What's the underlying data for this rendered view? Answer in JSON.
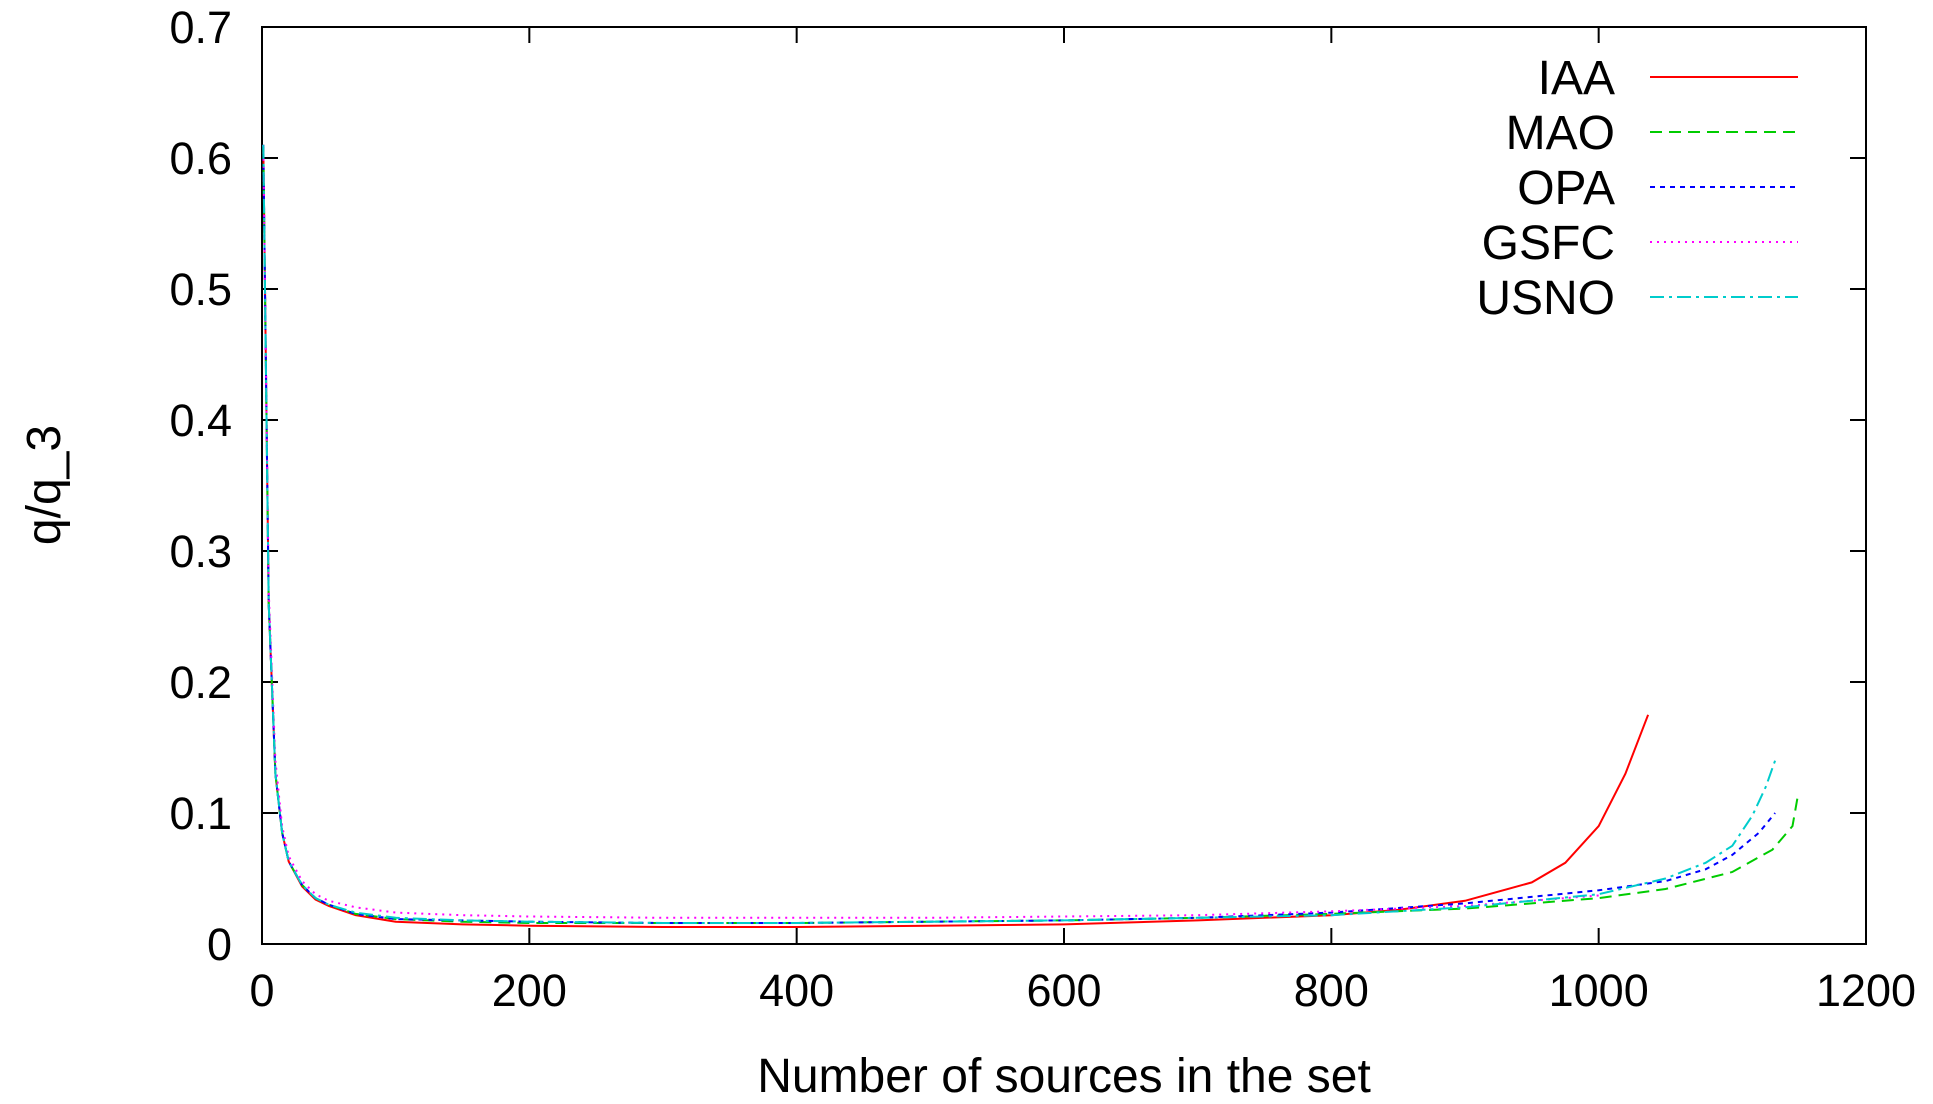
{
  "chart_data": {
    "type": "line",
    "xlabel": "Number of sources in the set",
    "ylabel": "q/q_3",
    "xlim": [
      0,
      1200
    ],
    "ylim": [
      0,
      0.7
    ],
    "xticks": [
      0,
      200,
      400,
      600,
      800,
      1000,
      1200
    ],
    "yticks": [
      0,
      0.1,
      0.2,
      0.3,
      0.4,
      0.5,
      0.6,
      0.7
    ],
    "grid": false,
    "legend_position": "top-right",
    "series": [
      {
        "name": "IAA",
        "color": "#ff0000",
        "dash": "solid",
        "points": [
          [
            1,
            0.61
          ],
          [
            5,
            0.26
          ],
          [
            10,
            0.13
          ],
          [
            15,
            0.085
          ],
          [
            20,
            0.063
          ],
          [
            30,
            0.044
          ],
          [
            40,
            0.034
          ],
          [
            50,
            0.029
          ],
          [
            70,
            0.022
          ],
          [
            100,
            0.017
          ],
          [
            150,
            0.015
          ],
          [
            200,
            0.014
          ],
          [
            300,
            0.013
          ],
          [
            400,
            0.013
          ],
          [
            500,
            0.014
          ],
          [
            600,
            0.015
          ],
          [
            700,
            0.018
          ],
          [
            800,
            0.022
          ],
          [
            850,
            0.026
          ],
          [
            900,
            0.033
          ],
          [
            950,
            0.047
          ],
          [
            975,
            0.062
          ],
          [
            1000,
            0.09
          ],
          [
            1020,
            0.13
          ],
          [
            1037,
            0.175
          ]
        ]
      },
      {
        "name": "MAO",
        "color": "#00cc00",
        "dash": "dashed",
        "points": [
          [
            1,
            0.61
          ],
          [
            5,
            0.26
          ],
          [
            10,
            0.13
          ],
          [
            15,
            0.085
          ],
          [
            20,
            0.063
          ],
          [
            30,
            0.045
          ],
          [
            40,
            0.035
          ],
          [
            50,
            0.03
          ],
          [
            70,
            0.023
          ],
          [
            100,
            0.019
          ],
          [
            150,
            0.017
          ],
          [
            200,
            0.016
          ],
          [
            300,
            0.016
          ],
          [
            400,
            0.016
          ],
          [
            500,
            0.017
          ],
          [
            600,
            0.018
          ],
          [
            700,
            0.02
          ],
          [
            800,
            0.023
          ],
          [
            900,
            0.027
          ],
          [
            1000,
            0.035
          ],
          [
            1050,
            0.042
          ],
          [
            1100,
            0.055
          ],
          [
            1130,
            0.072
          ],
          [
            1145,
            0.09
          ],
          [
            1149,
            0.113
          ]
        ]
      },
      {
        "name": "OPA",
        "color": "#0000ff",
        "dash": "short-dashed",
        "points": [
          [
            1,
            0.61
          ],
          [
            5,
            0.26
          ],
          [
            10,
            0.13
          ],
          [
            15,
            0.085
          ],
          [
            20,
            0.063
          ],
          [
            30,
            0.045
          ],
          [
            40,
            0.035
          ],
          [
            50,
            0.03
          ],
          [
            70,
            0.023
          ],
          [
            100,
            0.019
          ],
          [
            150,
            0.018
          ],
          [
            200,
            0.017
          ],
          [
            300,
            0.016
          ],
          [
            400,
            0.016
          ],
          [
            500,
            0.017
          ],
          [
            600,
            0.018
          ],
          [
            700,
            0.02
          ],
          [
            800,
            0.024
          ],
          [
            900,
            0.031
          ],
          [
            1000,
            0.041
          ],
          [
            1050,
            0.048
          ],
          [
            1080,
            0.057
          ],
          [
            1100,
            0.068
          ],
          [
            1120,
            0.085
          ],
          [
            1132,
            0.1
          ]
        ]
      },
      {
        "name": "GSFC",
        "color": "#ff00ff",
        "dash": "dotted",
        "points": [
          [
            1,
            0.61
          ],
          [
            5,
            0.27
          ],
          [
            10,
            0.14
          ],
          [
            15,
            0.09
          ],
          [
            20,
            0.067
          ],
          [
            30,
            0.048
          ],
          [
            40,
            0.038
          ],
          [
            50,
            0.033
          ],
          [
            70,
            0.028
          ],
          [
            100,
            0.024
          ],
          [
            150,
            0.022
          ],
          [
            200,
            0.021
          ],
          [
            300,
            0.02
          ],
          [
            400,
            0.02
          ],
          [
            500,
            0.02
          ],
          [
            600,
            0.021
          ],
          [
            700,
            0.022
          ],
          [
            800,
            0.025
          ],
          [
            900,
            0.029
          ],
          [
            1000,
            0.037
          ]
        ]
      },
      {
        "name": "USNO",
        "color": "#00cccc",
        "dash": "dash-dot",
        "points": [
          [
            1,
            0.61
          ],
          [
            5,
            0.26
          ],
          [
            10,
            0.13
          ],
          [
            15,
            0.085
          ],
          [
            20,
            0.063
          ],
          [
            30,
            0.045
          ],
          [
            40,
            0.035
          ],
          [
            50,
            0.03
          ],
          [
            70,
            0.024
          ],
          [
            100,
            0.02
          ],
          [
            150,
            0.018
          ],
          [
            200,
            0.017
          ],
          [
            300,
            0.016
          ],
          [
            400,
            0.016
          ],
          [
            500,
            0.017
          ],
          [
            600,
            0.018
          ],
          [
            700,
            0.02
          ],
          [
            800,
            0.022
          ],
          [
            900,
            0.028
          ],
          [
            1000,
            0.038
          ],
          [
            1050,
            0.05
          ],
          [
            1080,
            0.062
          ],
          [
            1100,
            0.075
          ],
          [
            1115,
            0.098
          ],
          [
            1125,
            0.12
          ],
          [
            1132,
            0.14
          ]
        ]
      }
    ]
  }
}
